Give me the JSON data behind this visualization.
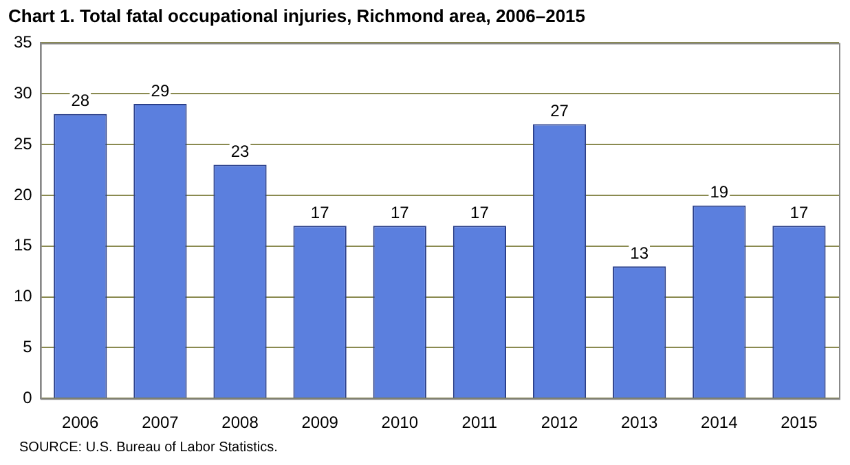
{
  "chart_data": {
    "type": "bar",
    "title": "Chart 1. Total fatal occupational injuries, Richmond area, 2006–2015",
    "categories": [
      "2006",
      "2007",
      "2008",
      "2009",
      "2010",
      "2011",
      "2012",
      "2013",
      "2014",
      "2015"
    ],
    "values": [
      28,
      29,
      23,
      17,
      17,
      17,
      27,
      13,
      19,
      17
    ],
    "color": "#5b7fde",
    "ylim": [
      0,
      35
    ],
    "yticks": [
      0,
      5,
      10,
      15,
      20,
      25,
      30,
      35
    ],
    "grid": "y",
    "data_labels": true,
    "annotations": [
      "SOURCE: U.S. Bureau of Labor Statistics."
    ]
  }
}
